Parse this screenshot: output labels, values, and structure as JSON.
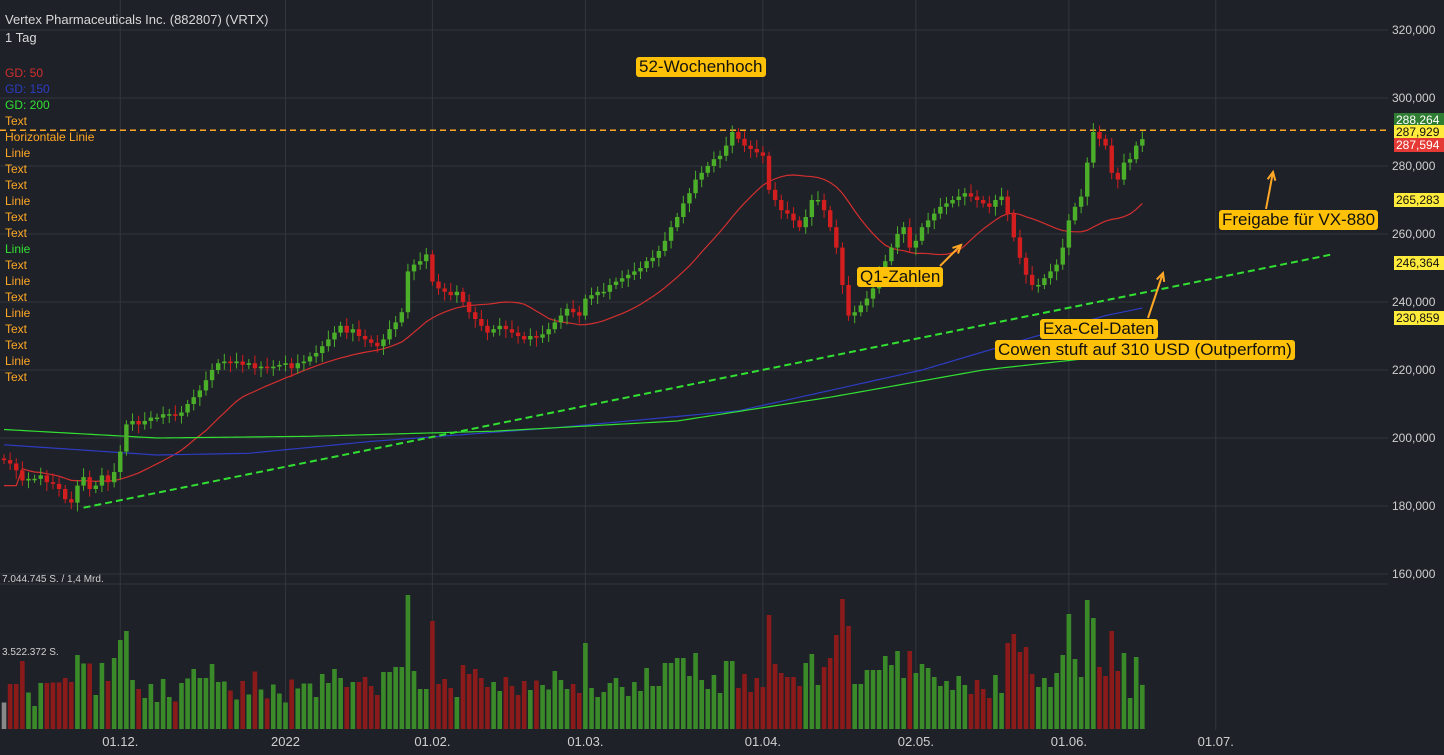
{
  "header": {
    "title": "Vertex Pharmaceuticals Inc. (882807) (VRTX)",
    "period": "1 Tag"
  },
  "legend": [
    {
      "label": "GD: 50",
      "color": "#d32f2f"
    },
    {
      "label": "GD: 150",
      "color": "#2d3cc2"
    },
    {
      "label": "GD: 200",
      "color": "#32e032"
    },
    {
      "label": "Text",
      "color": "#ffa726"
    },
    {
      "label": "Horizontale Linie",
      "color": "#ffa726"
    },
    {
      "label": "Linie",
      "color": "#ffa726"
    },
    {
      "label": "Text",
      "color": "#ffa726"
    },
    {
      "label": "Text",
      "color": "#ffa726"
    },
    {
      "label": "Linie",
      "color": "#ffa726"
    },
    {
      "label": "Text",
      "color": "#ffa726"
    },
    {
      "label": "Text",
      "color": "#ffa726"
    },
    {
      "label": "Linie",
      "color": "#32e032"
    },
    {
      "label": "Text",
      "color": "#ffa726"
    },
    {
      "label": "Linie",
      "color": "#ffa726"
    },
    {
      "label": "Text",
      "color": "#ffa726"
    },
    {
      "label": "Linie",
      "color": "#ffa726"
    },
    {
      "label": "Text",
      "color": "#ffa726"
    },
    {
      "label": "Text",
      "color": "#ffa726"
    },
    {
      "label": "Linie",
      "color": "#ffa726"
    },
    {
      "label": "Text",
      "color": "#ffa726"
    }
  ],
  "annotations": {
    "high52": "52-Wochenhoch",
    "q1": "Q1-Zahlen",
    "exacel": "Exa-Cel-Daten",
    "cowen": "Cowen stuft auf 310 USD (Outperform)",
    "vx880": "Freigabe für VX-880"
  },
  "volume_labels": {
    "max": "7.044.745 S. / 1,4 Mrd.",
    "mid": "3.522.372 S."
  },
  "price_tags": [
    {
      "value": "288,264",
      "bg": "#2e7d32",
      "fg": "#ffffff"
    },
    {
      "value": "287,929",
      "bg": "#ffeb3b",
      "fg": "#111111"
    },
    {
      "value": "287,594",
      "bg": "#e53935",
      "fg": "#ffffff"
    },
    {
      "value": "265,283",
      "bg": "#ffeb3b",
      "fg": "#111111"
    },
    {
      "value": "246,364",
      "bg": "#ffeb3b",
      "fg": "#111111"
    },
    {
      "value": "230,859",
      "bg": "#ffeb3b",
      "fg": "#111111"
    }
  ],
  "colors": {
    "background": "#1e2128",
    "grid": "#33363d",
    "up": "#4caf2a",
    "down": "#d21e1e",
    "ma50": "#d32f2f",
    "ma150": "#2d3cc2",
    "ma200": "#32e032",
    "resistance": "#ffa726",
    "trendline": "#32e032",
    "volume_up": "#3b8a2a",
    "volume_down": "#8b1a1a",
    "volume_neutral": "#888888"
  },
  "chart_data": {
    "type": "candlestick",
    "y_ticks": [
      "320,000",
      "300,000",
      "280,000",
      "260,000",
      "240,000",
      "220,000",
      "200,000",
      "180,000",
      "160,000"
    ],
    "y_tick_values": [
      320,
      300,
      280,
      260,
      240,
      220,
      200,
      180,
      160
    ],
    "x_ticks": [
      "01.12.",
      "2022",
      "01.02.",
      "01.03.",
      "01.04.",
      "02.05.",
      "01.06.",
      "01.07."
    ],
    "x_tick_bar_index": [
      19,
      46,
      70,
      95,
      124,
      149,
      174,
      198
    ],
    "resistance_level": 290.5,
    "trendline": {
      "start": [
        13,
        179.5
      ],
      "end": [
        217,
        254
      ]
    },
    "ma_labels": [
      "GD: 50",
      "GD: 150",
      "GD: 200"
    ],
    "closes": [
      193.5,
      192.5,
      190.5,
      187.5,
      188,
      188,
      189,
      187,
      186.5,
      185,
      182,
      181,
      186,
      188.5,
      185,
      186,
      189,
      187,
      190,
      196,
      204,
      205,
      204,
      205,
      206,
      206,
      207,
      207,
      206.5,
      207.5,
      210,
      212,
      214,
      217,
      220,
      222,
      222.5,
      222,
      222.5,
      221.5,
      222,
      220.5,
      221,
      220.5,
      221,
      221.5,
      222,
      220.5,
      222,
      222.5,
      224,
      225,
      227,
      229,
      231,
      233,
      231,
      232,
      230,
      229,
      228,
      227,
      229,
      232,
      234,
      237,
      249,
      251,
      252,
      254,
      246,
      244,
      243,
      242,
      243,
      240,
      237,
      235,
      233,
      231,
      232,
      233,
      232,
      231,
      230,
      229,
      230,
      229.5,
      230.5,
      232,
      234,
      236,
      238,
      237,
      236,
      241,
      242,
      243,
      243,
      245,
      246,
      247,
      248,
      249,
      250,
      252,
      253,
      255,
      258,
      262,
      265,
      269,
      272,
      276,
      278,
      280,
      282,
      283,
      286,
      290,
      288,
      286,
      285,
      284,
      283,
      273,
      270,
      267,
      266,
      264,
      262,
      265,
      270,
      270,
      267,
      262,
      256,
      245,
      236,
      237,
      239,
      241,
      244,
      248,
      252,
      256,
      260,
      262,
      256,
      258,
      262,
      264,
      266,
      268,
      269,
      270,
      271,
      272,
      271,
      270,
      269,
      268,
      270,
      271,
      266,
      259,
      253,
      248,
      245,
      245,
      247,
      249,
      251,
      256,
      264,
      268,
      271,
      281,
      290,
      288,
      286,
      278,
      276,
      281,
      282,
      286,
      287.9
    ],
    "opens": [
      194,
      193.5,
      192.5,
      190.5,
      187.5,
      188,
      188,
      189,
      187,
      186.5,
      185,
      182,
      181,
      186,
      188.5,
      185,
      186,
      189,
      187,
      190,
      196,
      204,
      205,
      204,
      205,
      206,
      206,
      207,
      207,
      206.5,
      207.5,
      210,
      212,
      214,
      217,
      220,
      222,
      222.5,
      222,
      222.5,
      221.5,
      222,
      220.5,
      221,
      220.5,
      221,
      221.5,
      222,
      220.5,
      222,
      222.5,
      224,
      225,
      227,
      229,
      231,
      233,
      231,
      232,
      230,
      229,
      228,
      227,
      229,
      232,
      234,
      237,
      249,
      251,
      252,
      254,
      246,
      244,
      243,
      242,
      243,
      240,
      237,
      235,
      233,
      231,
      232,
      233,
      232,
      231,
      230,
      229,
      230,
      229.5,
      230.5,
      232,
      234,
      236,
      238,
      237,
      236,
      241,
      242,
      243,
      243,
      245,
      246,
      247,
      248,
      249,
      250,
      252,
      253,
      255,
      258,
      262,
      265,
      269,
      272,
      276,
      278,
      280,
      282,
      283,
      286,
      290,
      288,
      286,
      285,
      284,
      283,
      273,
      270,
      267,
      266,
      264,
      262,
      265,
      270,
      270,
      267,
      262,
      256,
      245,
      236,
      237,
      239,
      241,
      244,
      248,
      252,
      256,
      260,
      262,
      256,
      258,
      262,
      264,
      266,
      268,
      269,
      270,
      271,
      272,
      271,
      270,
      269,
      268,
      270,
      271,
      266,
      259,
      253,
      248,
      245,
      245,
      247,
      249,
      251,
      256,
      264,
      268,
      271,
      281,
      290,
      288,
      286,
      278,
      276,
      281,
      282,
      286
    ]
  }
}
